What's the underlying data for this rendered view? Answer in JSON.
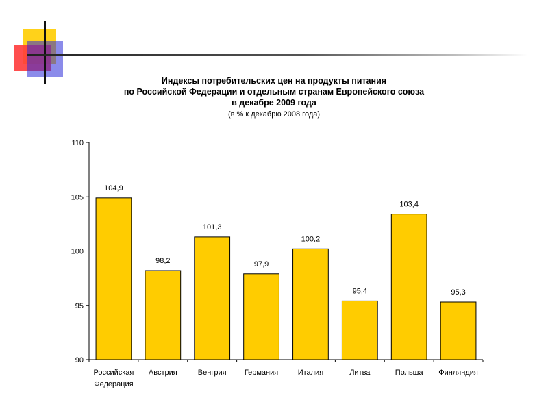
{
  "chart_data": {
    "type": "bar",
    "title_lines": [
      "Индексы потребительских цен на продукты питания",
      "по Российской Федерации и отдельным странам Европейского союза",
      "в декабре 2009 года"
    ],
    "subtitle": "(в % к декабрю 2008 года)",
    "categories": [
      [
        "Российская",
        "Федерация"
      ],
      [
        "Австрия"
      ],
      [
        "Венгрия"
      ],
      [
        "Германия"
      ],
      [
        "Италия"
      ],
      [
        "Литва"
      ],
      [
        "Польша"
      ],
      [
        "Финляндия"
      ]
    ],
    "values": [
      104.9,
      98.2,
      101.3,
      97.9,
      100.2,
      95.4,
      103.4,
      95.3
    ],
    "value_labels": [
      "104,9",
      "98,2",
      "101,3",
      "97,9",
      "100,2",
      "95,4",
      "103,4",
      "95,3"
    ],
    "ylim": [
      90,
      110
    ],
    "yticks": [
      90,
      95,
      100,
      105,
      110
    ],
    "ytick_labels": [
      "90",
      "95",
      "100",
      "105",
      "110"
    ],
    "bar_color": "#ffcc00",
    "bar_stroke": "#000000",
    "grid": false
  }
}
